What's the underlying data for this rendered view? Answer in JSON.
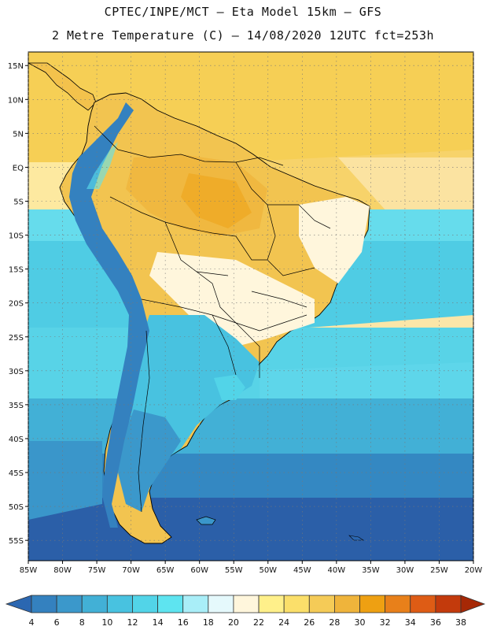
{
  "header": {
    "line1": "CPTEC/INPE/MCT –  Eta Model 15km – GFS",
    "line2": "2 Metre Temperature (C) – 14/08/2020 12UTC fct=253h"
  },
  "map": {
    "lon_range": [
      -85,
      -20
    ],
    "lat_range": [
      -58,
      17
    ],
    "lon_labels": [
      "85W",
      "80W",
      "75W",
      "70W",
      "65W",
      "60W",
      "55W",
      "50W",
      "45W",
      "40W",
      "35W",
      "30W",
      "25W",
      "20W"
    ],
    "lat_labels": [
      "15N",
      "10N",
      "5N",
      "EQ",
      "5S",
      "10S",
      "15S",
      "20S",
      "25S",
      "30S",
      "35S",
      "40S",
      "45S",
      "50S",
      "55S"
    ],
    "grid": "dotted"
  },
  "colorbar": {
    "labels": [
      "4",
      "6",
      "8",
      "10",
      "12",
      "14",
      "16",
      "18",
      "20",
      "22",
      "24",
      "26",
      "28",
      "30",
      "32",
      "34",
      "36",
      "38"
    ],
    "colors": [
      "#2b67b1",
      "#3481bf",
      "#3b98cb",
      "#42b0d6",
      "#48c2e0",
      "#52d4e8",
      "#5ee4f0",
      "#a9eef8",
      "#e5f9fc",
      "#fff6dc",
      "#fff08a",
      "#fbdf6a",
      "#f5cb57",
      "#efb43b",
      "#eea012",
      "#e8801a",
      "#de5c15",
      "#c33a0c",
      "#a62806"
    ]
  },
  "colors": {
    "ocean_cold": "#2b5fa8",
    "ocean_mid": "#3a8fc6",
    "ocean_warm": "#4fd0e6",
    "tropics": "#f6cf55",
    "land_warm": "#f1bf4a",
    "land_cool": "#fff3c8",
    "andes": "#3a8fc6"
  }
}
